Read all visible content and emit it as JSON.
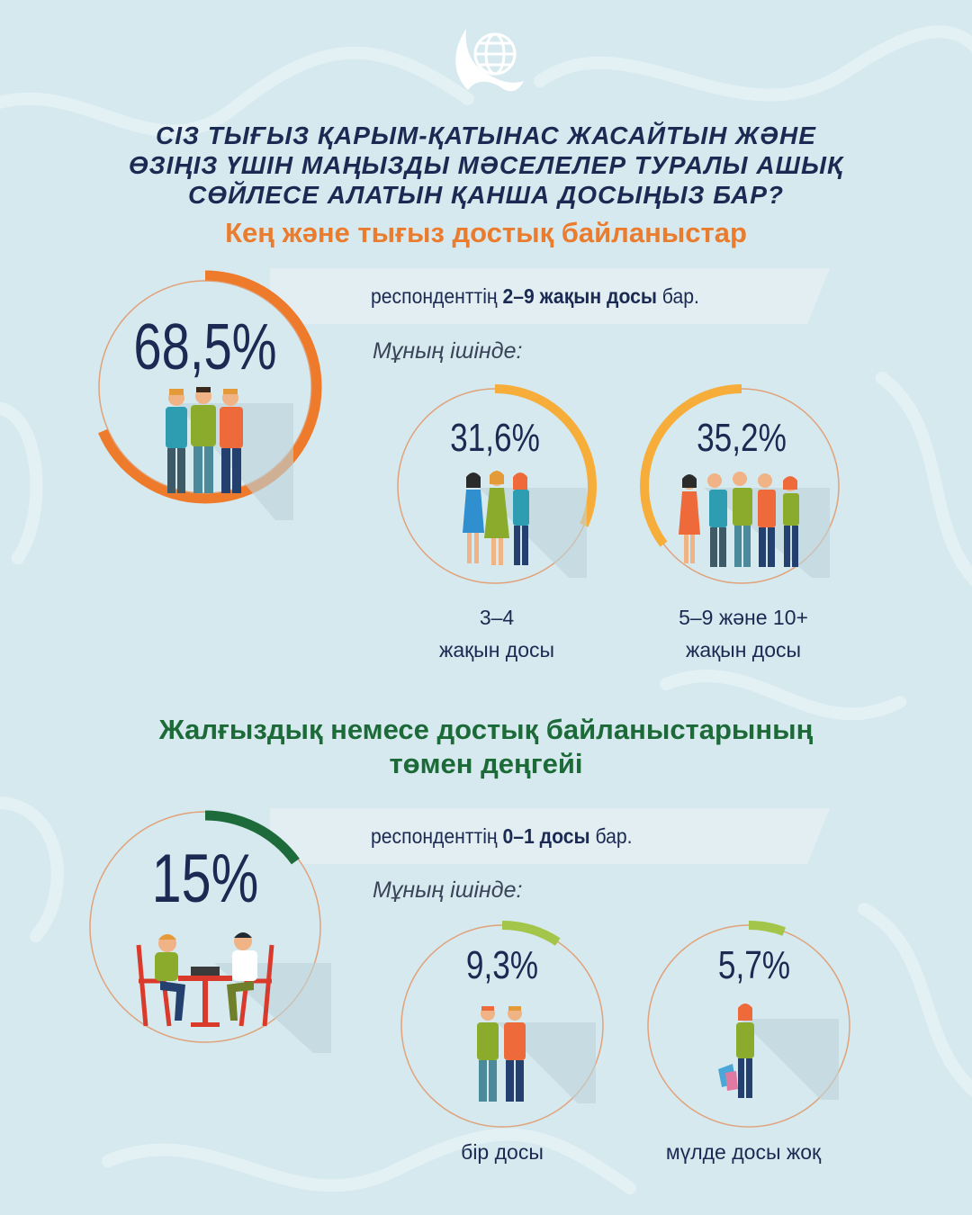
{
  "header": {
    "question_lines": [
      "СІЗ ТЫҒЫЗ ҚАРЫМ-ҚАТЫНАС ЖАСАЙТЫН ЖӘНЕ",
      "ӨЗІҢІЗ ҮШІН МАҢЫЗДЫ МӘСЕЛЕЛЕР ТУРАЛЫ АШЫҚ",
      "СӨЙЛЕСЕ АЛАТЫН ҚАНША ДОСЫҢЫЗ БАР?"
    ],
    "logo_icon": "eagle-globe-icon"
  },
  "section1": {
    "title": "Кең және тығыз достық байланыстар",
    "main": {
      "value": "68,5%",
      "fraction": 0.685,
      "banner_pre": "респонденттің ",
      "banner_bold": "2–9 жақын досы",
      "banner_post": " бар."
    },
    "sub_label": "Мұның ішінде:",
    "items": [
      {
        "value": "31,6%",
        "fraction": 0.316,
        "caption_lines": [
          "3–4",
          "жақын досы"
        ]
      },
      {
        "value": "35,2%",
        "fraction": 0.352,
        "caption_lines": [
          "5–9 және 10+",
          "жақын досы"
        ]
      }
    ],
    "color_main": "#ee7a2c",
    "color_sub": "#f7ad3a"
  },
  "section2": {
    "title_lines": [
      "Жалғыздық немесе достық байланыстарының",
      "төмен деңгейі"
    ],
    "main": {
      "value": "15%",
      "fraction": 0.15,
      "banner_pre": "респонденттің ",
      "banner_bold": "0–1 досы",
      "banner_post": " бар."
    },
    "sub_label": "Мұның ішінде:",
    "items": [
      {
        "value": "9,3%",
        "fraction": 0.093,
        "caption_lines": [
          "бір досы"
        ]
      },
      {
        "value": "5,7%",
        "fraction": 0.057,
        "caption_lines": [
          "мүлде досы жоқ"
        ]
      }
    ],
    "color_main": "#1d6b3a",
    "color_sub": "#a3c54a"
  },
  "colors": {
    "background": "#d6e9ee",
    "navy": "#1b2a52",
    "orange_title": "#ea7c2f",
    "green_title": "#1c6a38",
    "circle_border": "#e0a27a"
  }
}
